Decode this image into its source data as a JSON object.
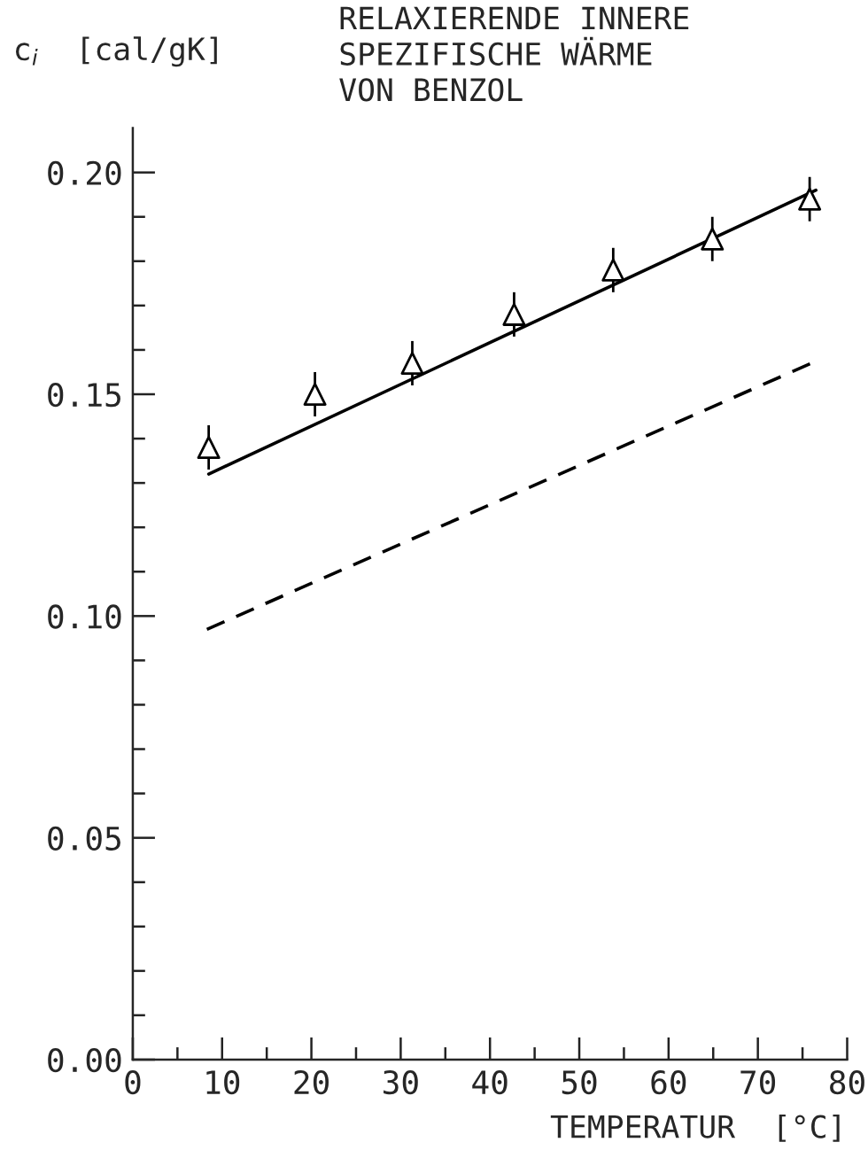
{
  "chart_data": {
    "type": "scatter",
    "title": "RELAXIERENDE INNERE\nSPEZIFISCHE WÄRME\nVON BENZOL",
    "xlabel": "TEMPERATUR  [°C]",
    "ylabel": "c$_{i}$  [cal/gK]",
    "series": [
      {
        "color": "#000000",
        "marker": "triangle",
        "x": [
          8.5,
          20.4,
          31.3,
          42.7,
          53.8,
          64.9,
          75.8
        ],
        "values": [
          0.138,
          0.15,
          0.157,
          0.168,
          0.178,
          0.185,
          0.194
        ],
        "errors": [
          0.005,
          0.005,
          0.005,
          0.005,
          0.005,
          0.005,
          0.005
        ]
      },
      {
        "type": "line",
        "color": "#000000",
        "line_style": "solid",
        "x": [
          8.5,
          76.5
        ],
        "values": [
          0.132,
          0.196
        ]
      },
      {
        "type": "line",
        "color": "#000000",
        "line_style": "dashed",
        "x": [
          8.3,
          76
        ],
        "values": [
          0.097,
          0.157
        ]
      }
    ],
    "xlim": [
      0,
      80
    ],
    "ylim": [
      0,
      0.21
    ],
    "xticks": [
      0,
      {
        "value": 5,
        "label": null
      },
      10,
      {
        "value": 15,
        "label": null
      },
      20,
      {
        "value": 25,
        "label": null
      },
      30,
      {
        "value": 35,
        "label": null
      },
      40,
      {
        "value": 45,
        "label": null
      },
      50,
      {
        "value": 55,
        "label": null
      },
      60,
      {
        "value": 65,
        "label": null
      },
      70,
      {
        "value": 75,
        "label": null
      },
      80
    ],
    "yticks": [
      {
        "value": 0,
        "label": "0.00"
      },
      {
        "value": 0.01,
        "label": null
      },
      {
        "value": 0.02,
        "label": null
      },
      {
        "value": 0.03,
        "label": null
      },
      {
        "value": 0.04,
        "label": null
      },
      {
        "value": 0.05,
        "label": "0.05"
      },
      {
        "value": 0.06,
        "label": null
      },
      {
        "value": 0.07,
        "label": null
      },
      {
        "value": 0.08,
        "label": null
      },
      {
        "value": 0.09,
        "label": null
      },
      {
        "value": 0.1,
        "label": "0.10"
      },
      {
        "value": 0.11,
        "label": null
      },
      {
        "value": 0.12,
        "label": null
      },
      {
        "value": 0.13,
        "label": null
      },
      {
        "value": 0.14,
        "label": null
      },
      {
        "value": 0.15,
        "label": "0.15"
      },
      {
        "value": 0.16,
        "label": null
      },
      {
        "value": 0.17,
        "label": null
      },
      {
        "value": 0.18,
        "label": null
      },
      {
        "value": 0.19,
        "label": null
      },
      {
        "value": 0.2,
        "label": "0.20"
      }
    ],
    "grid": false,
    "legend": false
  }
}
